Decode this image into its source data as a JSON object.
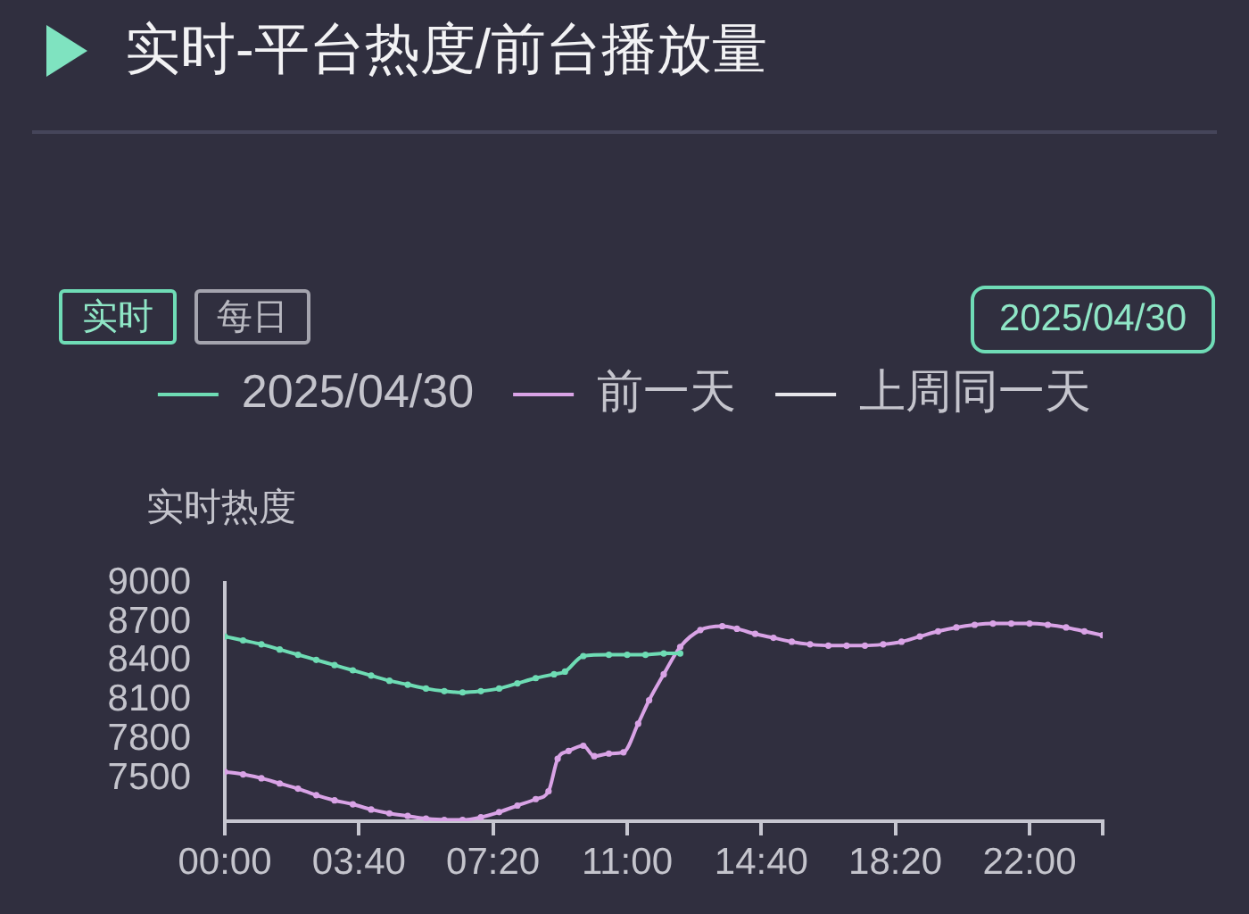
{
  "chart_data": {
    "type": "line",
    "title": "实时-平台热度/前台播放量",
    "ylabel": "实时热度",
    "annotations": [
      "实时",
      "每日",
      "2025/04/30"
    ],
    "xlim": [
      0,
      24
    ],
    "xticks": [
      {
        "value": 0,
        "label": "00:00"
      },
      {
        "value": 3.6667,
        "label": "03:40"
      },
      {
        "value": 7.3333,
        "label": "07:20"
      },
      {
        "value": 11,
        "label": "11:00"
      },
      {
        "value": 14.6667,
        "label": "14:40"
      },
      {
        "value": 18.3333,
        "label": "18:20"
      },
      {
        "value": 22,
        "label": "22:00"
      },
      {
        "value": 24,
        "label": null
      }
    ],
    "ylim": [
      7170,
      9000
    ],
    "yticks": [
      7500,
      7800,
      8100,
      8400,
      8700,
      9000
    ],
    "legend": "top",
    "marker": "circle",
    "line_style": "solid",
    "series": [
      {
        "name": "2025/04/30",
        "color": "#6edcb4",
        "x": [
          0,
          0.5,
          1,
          1.5,
          2,
          2.5,
          3,
          3.5,
          4,
          4.5,
          5,
          5.5,
          6,
          6.5,
          7,
          7.5,
          8,
          8.5,
          9,
          9.3,
          9.8,
          10.5,
          11,
          11.5,
          12,
          12.45
        ],
        "values": [
          8590,
          8560,
          8530,
          8490,
          8450,
          8410,
          8370,
          8330,
          8290,
          8250,
          8220,
          8190,
          8170,
          8160,
          8170,
          8190,
          8230,
          8270,
          8300,
          8320,
          8440,
          8450,
          8450,
          8450,
          8460,
          8460
        ]
      },
      {
        "name": "前一天",
        "color": "#d9a3e6",
        "x": [
          0,
          0.5,
          1,
          1.5,
          2,
          2.5,
          3,
          3.5,
          4,
          4.5,
          5,
          5.5,
          6,
          6.5,
          7,
          7.5,
          8,
          8.5,
          8.85,
          9.1,
          9.4,
          9.8,
          10.1,
          10.5,
          10.9,
          11.3,
          11.6,
          12,
          12.45,
          13,
          13.6,
          14,
          14.5,
          15,
          15.5,
          16,
          16.5,
          17,
          17.5,
          18,
          18.5,
          19,
          19.5,
          20,
          20.5,
          21,
          21.5,
          22,
          22.5,
          23,
          23.5,
          24
        ],
        "values": [
          7550,
          7530,
          7500,
          7460,
          7420,
          7370,
          7330,
          7300,
          7260,
          7230,
          7210,
          7190,
          7180,
          7180,
          7200,
          7240,
          7290,
          7340,
          7400,
          7650,
          7710,
          7750,
          7670,
          7690,
          7700,
          7920,
          8100,
          8300,
          8510,
          8640,
          8670,
          8650,
          8610,
          8580,
          8550,
          8530,
          8520,
          8520,
          8520,
          8530,
          8550,
          8590,
          8630,
          8660,
          8680,
          8690,
          8690,
          8690,
          8680,
          8660,
          8630,
          8600
        ]
      },
      {
        "name": "上周同一天",
        "color": "#e6e6ea"
      }
    ]
  }
}
